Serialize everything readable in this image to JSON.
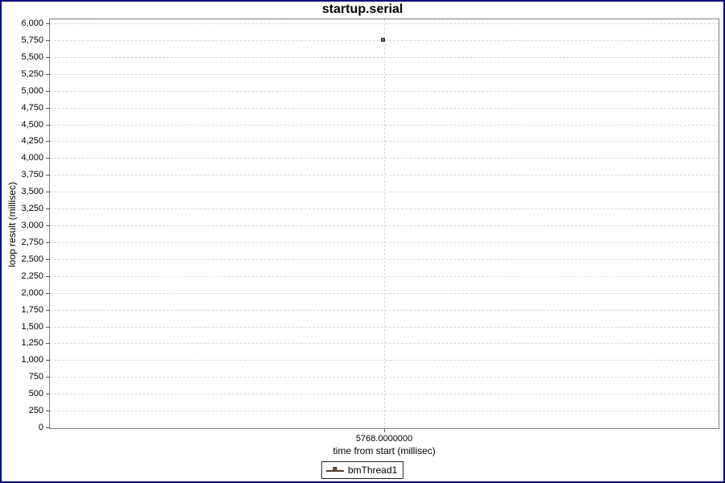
{
  "window": {
    "frame_border_color": "#000080",
    "background": "#ffffff"
  },
  "chart_data": {
    "type": "scatter",
    "title": "startup.serial",
    "xlabel": "time from start (millisec)",
    "ylabel": "loop result (millisec)",
    "ylim": [
      0,
      6000
    ],
    "y_tick_step": 250,
    "y_tick_labels": [
      "0",
      "250",
      "500",
      "750",
      "1,000",
      "1,250",
      "1,500",
      "1,750",
      "2,000",
      "2,250",
      "2,500",
      "2,750",
      "3,000",
      "3,250",
      "3,500",
      "3,750",
      "4,000",
      "4,250",
      "4,500",
      "4,750",
      "5,000",
      "5,250",
      "5,500",
      "5,750",
      "6,000"
    ],
    "x_tick_labels": [
      "5768.0000000"
    ],
    "grid": true,
    "legend_position": "bottom",
    "series": [
      {
        "name": "bmThread1",
        "marker": "square",
        "points": [
          {
            "x": 5768.0,
            "y": 5745
          }
        ]
      }
    ],
    "colors": {
      "series_outline": "#5a382e",
      "series_fill": "#e4f0e2",
      "gridline": "#d9d9d9",
      "plot_border": "#808080",
      "frame_border": "#000080",
      "text": "#000000"
    }
  },
  "legend": {
    "items": [
      "bmThread1"
    ]
  }
}
